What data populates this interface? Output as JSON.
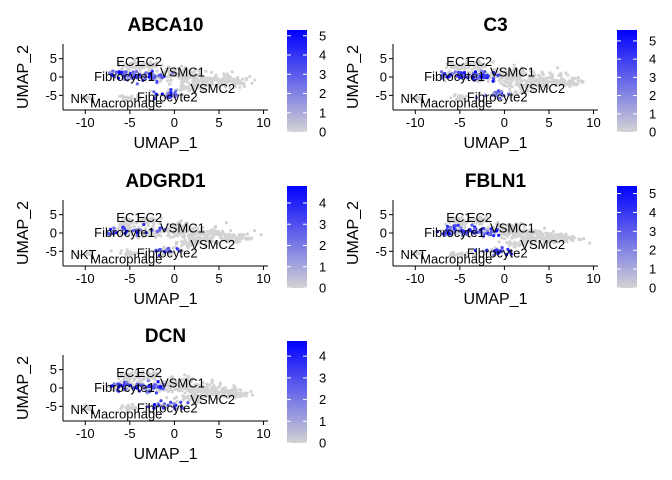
{
  "chart_data": [
    {
      "type": "scatter",
      "title": "ABCA10",
      "xlabel": "UMAP_1",
      "ylabel": "UMAP_2",
      "xticks": [
        "-10",
        "-5",
        "0",
        "5",
        "10"
      ],
      "yticks": [
        "5",
        "0",
        "-5"
      ],
      "xlim": [
        -12.5,
        10.5
      ],
      "ylim": [
        -9,
        9
      ],
      "cluster_labels": [
        {
          "text": "EC1",
          "x": -5.1,
          "y": 4.2
        },
        {
          "text": "EC2",
          "x": -2.8,
          "y": 4.2
        },
        {
          "text": "Fibrocyte1",
          "x": -5.6,
          "y": 0.2
        },
        {
          "text": "VSMC1",
          "x": 0.9,
          "y": 1.3
        },
        {
          "text": "NKT",
          "x": -10.2,
          "y": -5.8
        },
        {
          "text": "Macrophage",
          "x": -5.4,
          "y": -7.1
        },
        {
          "text": "Fibrocyte2",
          "x": -0.8,
          "y": -5.5
        },
        {
          "text": "VSMC2",
          "x": 4.3,
          "y": -3.2
        }
      ],
      "colorbar": {
        "low": "#d3d3d3",
        "high": "#0000ff",
        "min": 0,
        "max": 5.3,
        "ticks": [
          "0",
          "1",
          "2",
          "3",
          "4",
          "5"
        ]
      },
      "expression_region": "fibrocyte",
      "expression_level": 0.55
    },
    {
      "type": "scatter",
      "title": "C3",
      "xlabel": "UMAP_1",
      "ylabel": "UMAP_2",
      "xticks": [
        "-10",
        "-5",
        "0",
        "5",
        "10"
      ],
      "yticks": [
        "5",
        "0",
        "-5"
      ],
      "xlim": [
        -12.5,
        10.5
      ],
      "ylim": [
        -9,
        9
      ],
      "cluster_labels": [
        {
          "text": "EC1",
          "x": -5.1,
          "y": 4.2
        },
        {
          "text": "EC2",
          "x": -2.8,
          "y": 4.2
        },
        {
          "text": "Fibrocyte1",
          "x": -5.6,
          "y": 0.2
        },
        {
          "text": "VSMC1",
          "x": 0.9,
          "y": 1.3
        },
        {
          "text": "NKT",
          "x": -10.2,
          "y": -5.8
        },
        {
          "text": "Macrophage",
          "x": -5.4,
          "y": -7.1
        },
        {
          "text": "Fibrocyte2",
          "x": -0.8,
          "y": -5.5
        },
        {
          "text": "VSMC2",
          "x": 4.3,
          "y": -3.2
        }
      ],
      "colorbar": {
        "low": "#d3d3d3",
        "high": "#0000ff",
        "min": 0,
        "max": 5.6,
        "ticks": [
          "0",
          "1",
          "2",
          "3",
          "4",
          "5"
        ]
      },
      "expression_region": "fibrocyte",
      "expression_level": 0.5
    },
    {
      "type": "scatter",
      "title": "ADGRD1",
      "xlabel": "UMAP_1",
      "ylabel": "UMAP_2",
      "xticks": [
        "-10",
        "-5",
        "0",
        "5",
        "10"
      ],
      "yticks": [
        "5",
        "0",
        "-5"
      ],
      "xlim": [
        -12.5,
        10.5
      ],
      "ylim": [
        -9,
        9
      ],
      "cluster_labels": [
        {
          "text": "EC1",
          "x": -5.1,
          "y": 4.2
        },
        {
          "text": "EC2",
          "x": -2.8,
          "y": 4.2
        },
        {
          "text": "Fibrocyte1",
          "x": -5.6,
          "y": 0.2
        },
        {
          "text": "VSMC1",
          "x": 0.9,
          "y": 1.3
        },
        {
          "text": "NKT",
          "x": -10.2,
          "y": -5.8
        },
        {
          "text": "Macrophage",
          "x": -5.4,
          "y": -7.1
        },
        {
          "text": "Fibrocyte2",
          "x": -0.8,
          "y": -5.5
        },
        {
          "text": "VSMC2",
          "x": 4.3,
          "y": -3.2
        }
      ],
      "colorbar": {
        "low": "#d3d3d3",
        "high": "#0000ff",
        "min": 0,
        "max": 4.8,
        "ticks": [
          "0",
          "1",
          "2",
          "3",
          "4"
        ]
      },
      "expression_region": "fibrocyte",
      "expression_level": 0.3
    },
    {
      "type": "scatter",
      "title": "FBLN1",
      "xlabel": "UMAP_1",
      "ylabel": "UMAP_2",
      "xticks": [
        "-10",
        "-5",
        "0",
        "5",
        "10"
      ],
      "yticks": [
        "5",
        "0",
        "-5"
      ],
      "xlim": [
        -12.5,
        10.5
      ],
      "ylim": [
        -9,
        9
      ],
      "cluster_labels": [
        {
          "text": "EC1",
          "x": -5.1,
          "y": 4.2
        },
        {
          "text": "EC2",
          "x": -2.8,
          "y": 4.2
        },
        {
          "text": "Fibrocyte1",
          "x": -5.6,
          "y": 0.2
        },
        {
          "text": "VSMC1",
          "x": 0.9,
          "y": 1.3
        },
        {
          "text": "NKT",
          "x": -10.2,
          "y": -5.8
        },
        {
          "text": "Macrophage",
          "x": -5.4,
          "y": -7.1
        },
        {
          "text": "Fibrocyte2",
          "x": -0.8,
          "y": -5.5
        },
        {
          "text": "VSMC2",
          "x": 4.3,
          "y": -3.2
        }
      ],
      "colorbar": {
        "low": "#d3d3d3",
        "high": "#0000ff",
        "min": 0,
        "max": 5.4,
        "ticks": [
          "0",
          "1",
          "2",
          "3",
          "4",
          "5"
        ]
      },
      "expression_region": "fibrocyte",
      "expression_level": 0.65
    },
    {
      "type": "scatter",
      "title": "DCN",
      "xlabel": "UMAP_1",
      "ylabel": "UMAP_2",
      "xticks": [
        "-10",
        "-5",
        "0",
        "5",
        "10"
      ],
      "yticks": [
        "5",
        "0",
        "-5"
      ],
      "xlim": [
        -12.5,
        10.5
      ],
      "ylim": [
        -9,
        9
      ],
      "cluster_labels": [
        {
          "text": "EC1",
          "x": -5.1,
          "y": 4.2
        },
        {
          "text": "EC2",
          "x": -2.8,
          "y": 4.2
        },
        {
          "text": "Fibrocyte1",
          "x": -5.6,
          "y": 0.2
        },
        {
          "text": "VSMC1",
          "x": 0.9,
          "y": 1.3
        },
        {
          "text": "NKT",
          "x": -10.2,
          "y": -5.8
        },
        {
          "text": "Macrophage",
          "x": -5.4,
          "y": -7.1
        },
        {
          "text": "Fibrocyte2",
          "x": -0.8,
          "y": -5.5
        },
        {
          "text": "VSMC2",
          "x": 4.3,
          "y": -3.2
        }
      ],
      "colorbar": {
        "low": "#d3d3d3",
        "high": "#0000ff",
        "min": 0,
        "max": 4.7,
        "ticks": [
          "0",
          "1",
          "2",
          "3",
          "4"
        ]
      },
      "expression_region": "fibrocyte",
      "expression_level": 0.5
    }
  ]
}
